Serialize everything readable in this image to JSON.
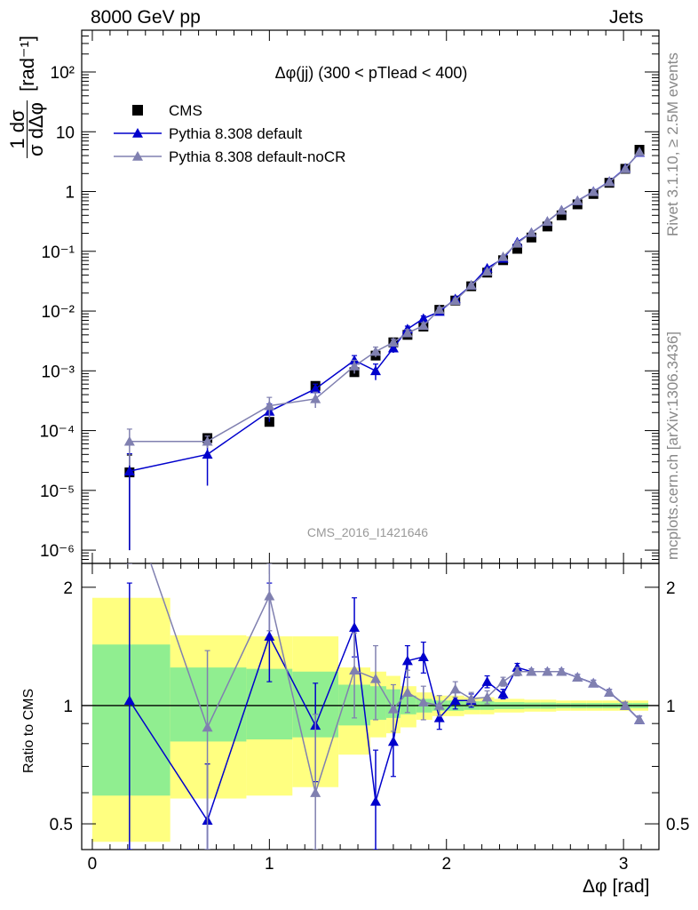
{
  "header": {
    "left": "8000 GeV pp",
    "right": "Jets"
  },
  "side_labels": {
    "rivet": "Rivet 3.1.10, ≥ 2.5M events",
    "mcplots": "mcplots.cern.ch [arXiv:1306.3436]"
  },
  "chart_data": [
    {
      "type": "scatter",
      "panel": "main",
      "title": "Δφ(jj) (300 < pTlead <  400)",
      "watermark": "CMS_2016_I1421646",
      "ylabel": "1/σ dσ/dΔφ [rad⁻¹]",
      "ylabel_num": "1 dσ",
      "ylabel_den": "σ dΔφ",
      "ylabel_unit": "[rad⁻¹]",
      "y_scale": "log",
      "ylim": [
        6e-07,
        500
      ],
      "xlim": [
        -0.06,
        3.2
      ],
      "ytick_labels": [
        "10⁻⁶",
        "10⁻⁵",
        "10⁻⁴",
        "10⁻³",
        "10⁻²",
        "10⁻¹",
        "1",
        "10",
        "10²"
      ],
      "legend_position": "top-left",
      "x": [
        0.21,
        0.65,
        1.0,
        1.26,
        1.48,
        1.6,
        1.7,
        1.78,
        1.87,
        1.96,
        2.05,
        2.14,
        2.23,
        2.32,
        2.4,
        2.48,
        2.57,
        2.65,
        2.74,
        2.83,
        2.92,
        3.01,
        3.09
      ],
      "series": [
        {
          "name": "CMS",
          "color": "#000000",
          "marker": "square",
          "values": [
            2e-05,
            7.5e-05,
            0.00014,
            0.00056,
            0.00095,
            0.0018,
            0.003,
            0.004,
            0.0055,
            0.0105,
            0.015,
            0.026,
            0.044,
            0.071,
            0.11,
            0.17,
            0.26,
            0.4,
            0.61,
            0.91,
            1.4,
            2.4,
            5.0
          ],
          "errors": [
            1.9e-05,
            1e-05,
            1e-05,
            6e-05,
            0.0001,
            0.0001,
            0.0002,
            0.0002,
            0.0003,
            0.0005,
            0.0006,
            0.001,
            0.0015,
            0.002,
            0.003,
            0.004,
            0.006,
            0.008,
            0.01,
            0.015,
            0.02,
            0.04,
            0.08
          ]
        },
        {
          "name": "Pythia 8.308 default",
          "color": "#0000cc",
          "marker": "triangle",
          "values": [
            2.1e-05,
            4e-05,
            0.00021,
            0.0005,
            0.0015,
            0.001,
            0.0024,
            0.005,
            0.0075,
            0.0098,
            0.016,
            0.027,
            0.052,
            0.076,
            0.142,
            0.205,
            0.315,
            0.485,
            0.7,
            1.0,
            1.47,
            2.45,
            4.5
          ],
          "errors": [
            2e-05,
            2.8e-05,
            7e-05,
            0.0001,
            0.0003,
            0.0003,
            0.0004,
            0.0006,
            0.0008,
            0.0008,
            0.001,
            0.0015,
            0.002,
            0.003,
            0.004,
            0.005,
            0.007,
            0.009,
            0.012,
            0.015,
            0.02,
            0.03,
            0.05
          ]
        },
        {
          "name": "Pythia 8.308 default-noCR",
          "color": "#8080b0",
          "marker": "triangle",
          "values": [
            6.6e-05,
            6.6e-05,
            0.00026,
            0.00034,
            0.0012,
            0.0021,
            0.003,
            0.0043,
            0.0057,
            0.0106,
            0.015,
            0.027,
            0.046,
            0.081,
            0.136,
            0.205,
            0.315,
            0.485,
            0.7,
            0.99,
            1.45,
            2.4,
            4.6
          ],
          "errors": [
            4e-05,
            1.5e-05,
            0.0001,
            0.0001,
            0.0003,
            0.0004,
            0.0004,
            0.0006,
            0.0007,
            0.0009,
            0.001,
            0.0015,
            0.002,
            0.003,
            0.004,
            0.005,
            0.007,
            0.009,
            0.012,
            0.015,
            0.02,
            0.03,
            0.05
          ]
        }
      ]
    },
    {
      "type": "line",
      "panel": "ratio",
      "ylabel": "Ratio to CMS",
      "xlabel": "Δφ [rad]",
      "y_scale": "log",
      "ylim": [
        0.43,
        2.3
      ],
      "xlim": [
        -0.06,
        3.2
      ],
      "xtick_labels": [
        "0",
        "1",
        "2",
        "3"
      ],
      "ytick_labels": [
        "0.5",
        "1",
        "2"
      ],
      "reference_line": 1,
      "bands": {
        "edges": [
          0.0,
          0.44,
          0.87,
          1.13,
          1.39,
          1.57,
          1.66,
          1.74,
          1.83,
          1.92,
          2.01,
          2.1,
          2.19,
          2.27,
          2.36,
          2.44,
          2.53,
          2.62,
          2.7,
          2.79,
          2.88,
          2.97,
          3.05,
          3.14
        ],
        "yellow_high": [
          1.88,
          1.51,
          1.5,
          1.5,
          1.25,
          1.22,
          1.19,
          1.12,
          1.08,
          1.06,
          1.06,
          1.05,
          1.05,
          1.04,
          1.04,
          1.035,
          1.035,
          1.03,
          1.03,
          1.03,
          1.03,
          1.03,
          1.03
        ],
        "yellow_low": [
          0.45,
          0.58,
          0.59,
          0.62,
          0.75,
          0.83,
          0.85,
          0.88,
          0.92,
          0.94,
          0.94,
          0.95,
          0.95,
          0.96,
          0.96,
          0.965,
          0.965,
          0.97,
          0.97,
          0.97,
          0.97,
          0.97,
          0.97
        ],
        "green_high": [
          1.43,
          1.25,
          1.24,
          1.22,
          1.13,
          1.12,
          1.1,
          1.06,
          1.04,
          1.03,
          1.03,
          1.025,
          1.025,
          1.02,
          1.02,
          1.018,
          1.018,
          1.015,
          1.015,
          1.015,
          1.015,
          1.015,
          1.015
        ],
        "green_low": [
          0.59,
          0.81,
          0.82,
          0.83,
          0.89,
          0.92,
          0.93,
          0.95,
          0.96,
          0.97,
          0.97,
          0.975,
          0.975,
          0.98,
          0.98,
          0.982,
          0.982,
          0.985,
          0.985,
          0.985,
          0.985,
          0.985,
          0.985
        ]
      },
      "x": [
        0.21,
        0.65,
        1.0,
        1.26,
        1.48,
        1.6,
        1.7,
        1.78,
        1.87,
        1.96,
        2.05,
        2.14,
        2.23,
        2.32,
        2.4,
        2.48,
        2.57,
        2.65,
        2.74,
        2.83,
        2.92,
        3.01,
        3.09
      ],
      "series": [
        {
          "name": "Pythia 8.308 default",
          "color": "#0000cc",
          "values": [
            1.03,
            0.51,
            1.5,
            0.89,
            1.58,
            0.57,
            0.81,
            1.3,
            1.33,
            0.93,
            1.03,
            1.03,
            1.15,
            1.07,
            1.25,
            1.22,
            1.22,
            1.22,
            1.18,
            1.14,
            1.08,
            1.0,
            0.92
          ],
          "err_low": [
            0.63,
            0.1,
            0.35,
            0.25,
            0.25,
            0.2,
            0.15,
            0.12,
            0.12,
            0.06,
            0.05,
            0.04,
            0.04,
            0.03,
            0.03,
            0.02,
            0.02,
            0.02,
            0.02,
            0.02,
            0.02,
            0.02,
            0.02
          ],
          "err_high": [
            1.02,
            0.2,
            0.55,
            0.25,
            0.3,
            0.2,
            0.15,
            0.12,
            0.12,
            0.06,
            0.05,
            0.04,
            0.04,
            0.03,
            0.03,
            0.02,
            0.02,
            0.02,
            0.02,
            0.02,
            0.02,
            0.02,
            0.02
          ]
        },
        {
          "name": "Pythia 8.308 default-noCR",
          "color": "#8080b0",
          "values": [
            3.3,
            0.88,
            1.9,
            0.6,
            1.23,
            1.17,
            0.98,
            1.08,
            1.02,
            1.0,
            1.1,
            1.04,
            1.05,
            1.15,
            1.22,
            1.22,
            1.22,
            1.22,
            1.18,
            1.14,
            1.08,
            1.0,
            0.92
          ],
          "err_low": [
            1.0,
            0.45,
            0.35,
            0.17,
            0.3,
            0.25,
            0.12,
            0.12,
            0.1,
            0.06,
            0.05,
            0.04,
            0.04,
            0.03,
            0.03,
            0.02,
            0.02,
            0.02,
            0.02,
            0.02,
            0.02,
            0.02,
            0.02
          ],
          "err_high": [
            1.0,
            0.5,
            0.45,
            0.35,
            0.3,
            0.25,
            0.15,
            0.15,
            0.1,
            0.06,
            0.05,
            0.04,
            0.04,
            0.03,
            0.03,
            0.02,
            0.02,
            0.02,
            0.02,
            0.02,
            0.02,
            0.02,
            0.02
          ]
        }
      ]
    }
  ]
}
